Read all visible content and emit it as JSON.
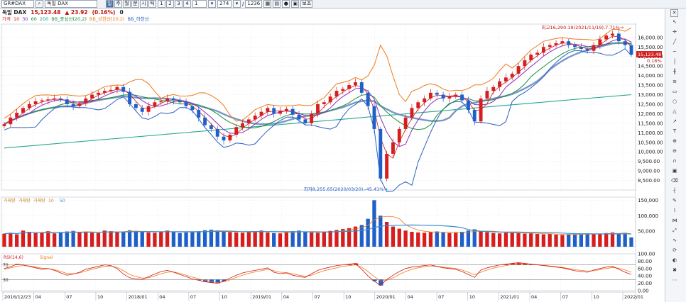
{
  "toolbar": {
    "code": "GR#DAX",
    "name": "독일 DAX",
    "periods": [
      "일",
      "주",
      "월",
      "분",
      "시",
      "틱"
    ],
    "active_period": "일",
    "numbers": [
      "1",
      "2",
      "3",
      "4"
    ],
    "count_value": "1",
    "bars_value": "274",
    "total_value": "1236",
    "view_button": "보조"
  },
  "symbol": {
    "name": "독일 DAX",
    "price": "15,123.48",
    "change": "▲ 23.92",
    "change_pct": "(0.16%)",
    "extra": "0"
  },
  "legend": [
    {
      "label": "가격",
      "color": "#d01919"
    },
    {
      "label": "10",
      "color": "#d01919"
    },
    {
      "label": "30",
      "color": "#7b2fb8"
    },
    {
      "label": "60",
      "color": "#1a8f3a"
    },
    {
      "label": "200",
      "color": "#19a08c"
    },
    {
      "label": "BB_중심선(20,2)",
      "color": "#1a8f3a"
    },
    {
      "label": "BB_상한선(20,2)",
      "color": "#ef7a1a"
    },
    {
      "label": "BB_하한선",
      "color": "#2a5fbf"
    }
  ],
  "colors": {
    "up": "#d61e1e",
    "down": "#1f5fc8",
    "ma10": "#d01919",
    "ma30": "#8a2fb8",
    "ma60": "#1a8f3a",
    "ma200": "#26a88f",
    "bb_mid": "#7a98c6",
    "bb_up": "#ef7a1a",
    "bb_low": "#2a5fbf",
    "rsi": "#d01919",
    "signal": "#ef7a1a",
    "grid": "#e4e8ee"
  },
  "annotations": {
    "high": "최고16,290.19(2021/11/19),7.71%→",
    "low": "최저8,255.65(2020/03/20),-45.41%→"
  },
  "current_price_label": "15,123.48",
  "current_change_label": "0.16%",
  "volume_legend": [
    "거래량",
    "거래량",
    "거래량",
    "10",
    "50"
  ],
  "rsi_legend": [
    "RSI(14,6)",
    "Signal"
  ],
  "rsi_levels": {
    "upper": "70",
    "lower": "30"
  },
  "chart_data": [
    {
      "type": "candlestick",
      "title": "독일 DAX",
      "x": [
        "2016/12/23",
        "04",
        "07",
        "10",
        "2018/01",
        "04",
        "07",
        "10",
        "2019/01",
        "04",
        "07",
        "10",
        "2020/01",
        "04",
        "07",
        "10",
        "2021/01",
        "04",
        "07",
        "10",
        "2022/01"
      ],
      "x_ticks": [
        "2016/12/23",
        "04",
        "07",
        "10",
        "2018/01",
        "04",
        "07",
        "10",
        "2019/01",
        "04",
        "07",
        "10",
        "2020/01",
        "04",
        "07",
        "10",
        "2021/01",
        "04",
        "07",
        "10",
        "2022/01"
      ],
      "ylim": [
        8000,
        16700
      ],
      "y_ticks": [
        "16,000.00",
        "15,500.00",
        "15,000.00",
        "14,500.00",
        "14,000.00",
        "13,500.00",
        "13,000.00",
        "12,500.00",
        "12,000.00",
        "11,500.00",
        "11,000.00",
        "10,500.00",
        "10,000.00",
        "9,500.00",
        "9,000.00",
        "8,500.00"
      ],
      "close_series": [
        11450,
        11800,
        12050,
        12300,
        12500,
        12650,
        12700,
        12750,
        12800,
        12750,
        12500,
        12400,
        12550,
        12800,
        13000,
        13100,
        13200,
        13250,
        13400,
        13150,
        12500,
        12300,
        12100,
        12400,
        12600,
        12650,
        12800,
        12700,
        12600,
        12400,
        12200,
        11800,
        11400,
        11200,
        10800,
        10600,
        10900,
        11300,
        11500,
        11700,
        11900,
        12100,
        12300,
        12000,
        12150,
        12250,
        11950,
        11700,
        11500,
        12000,
        12500,
        12600,
        12900,
        13200,
        13300,
        13500,
        13650,
        13100,
        12400,
        11200,
        8600,
        9900,
        10500,
        11200,
        11800,
        12300,
        12600,
        12800,
        13100,
        13000,
        12800,
        12900,
        13000,
        12700,
        12200,
        11600,
        12800,
        13200,
        13400,
        13700,
        13900,
        14100,
        14500,
        14800,
        15100,
        15200,
        15500,
        15600,
        15700,
        15800,
        15600,
        15500,
        15400,
        15300,
        15600,
        15900,
        16100,
        16200,
        15800,
        15600,
        15100
      ],
      "high": 16290.19,
      "low": 8255.65
    },
    {
      "type": "bar",
      "title": "거래량",
      "ylim": [
        0,
        160000
      ],
      "y_ticks": [
        "150,000",
        "100,000",
        "50,000"
      ],
      "values": [
        42000,
        45000,
        40000,
        52000,
        48000,
        44000,
        46000,
        50000,
        43000,
        47000,
        49000,
        51000,
        46000,
        48000,
        45000,
        44000,
        52000,
        50000,
        47000,
        49000,
        53000,
        51000,
        48000,
        46000,
        45000,
        49000,
        52000,
        47000,
        44000,
        46000,
        48000,
        50000,
        53000,
        55000,
        52000,
        49000,
        47000,
        46000,
        45000,
        48000,
        50000,
        52000,
        46000,
        44000,
        43000,
        47000,
        50000,
        52000,
        49000,
        46000,
        45000,
        48000,
        51000,
        54000,
        57000,
        60000,
        65000,
        70000,
        90000,
        150000,
        100000,
        80000,
        65000,
        58000,
        52000,
        48000,
        46000,
        45000,
        47000,
        49000,
        46000,
        44000,
        45000,
        48000,
        52000,
        56000,
        50000,
        47000,
        44000,
        43000,
        45000,
        46000,
        44000,
        42000,
        43000,
        41000,
        40000,
        42000,
        39000,
        38000,
        40000,
        39000,
        41000,
        43000,
        40000,
        42000,
        44000,
        46000,
        43000,
        45000,
        30000
      ]
    },
    {
      "type": "line",
      "title": "RSI(14,6)",
      "ylim": [
        0,
        100
      ],
      "y_ticks": [
        "100.00",
        "80.00",
        "60.00",
        "40.00",
        "20.00",
        "0.00"
      ],
      "series": [
        {
          "name": "RSI(14,6)",
          "values": [
            60,
            65,
            72,
            70,
            66,
            62,
            58,
            60,
            55,
            48,
            42,
            45,
            50,
            58,
            62,
            66,
            70,
            68,
            60,
            45,
            35,
            32,
            30,
            38,
            45,
            52,
            55,
            50,
            44,
            38,
            32,
            28,
            24,
            22,
            20,
            26,
            34,
            42,
            48,
            52,
            55,
            58,
            62,
            50,
            46,
            48,
            42,
            38,
            36,
            46,
            55,
            60,
            64,
            68,
            70,
            72,
            74,
            58,
            40,
            26,
            14,
            30,
            42,
            52,
            60,
            64,
            66,
            68,
            70,
            66,
            62,
            60,
            58,
            52,
            44,
            36,
            56,
            62,
            66,
            70,
            72,
            74,
            76,
            74,
            72,
            70,
            68,
            66,
            64,
            62,
            58,
            54,
            52,
            50,
            56,
            60,
            64,
            66,
            58,
            50,
            44
          ]
        },
        {
          "name": "Signal",
          "values": [
            58,
            62,
            66,
            68,
            67,
            64,
            61,
            60,
            57,
            52,
            47,
            46,
            48,
            53,
            58,
            62,
            66,
            67,
            63,
            54,
            44,
            38,
            34,
            35,
            40,
            46,
            50,
            51,
            47,
            42,
            37,
            32,
            28,
            25,
            22,
            24,
            29,
            36,
            42,
            47,
            51,
            54,
            58,
            54,
            50,
            49,
            46,
            42,
            39,
            42,
            48,
            54,
            58,
            62,
            66,
            68,
            70,
            64,
            52,
            38,
            26,
            28,
            35,
            44,
            52,
            58,
            62,
            65,
            67,
            66,
            64,
            62,
            60,
            56,
            50,
            43,
            50,
            56,
            61,
            65,
            68,
            71,
            73,
            73,
            72,
            71,
            69,
            67,
            65,
            63,
            60,
            57,
            55,
            53,
            54,
            57,
            60,
            63,
            61,
            56,
            50
          ]
        }
      ],
      "levels": [
        70,
        30
      ]
    }
  ]
}
